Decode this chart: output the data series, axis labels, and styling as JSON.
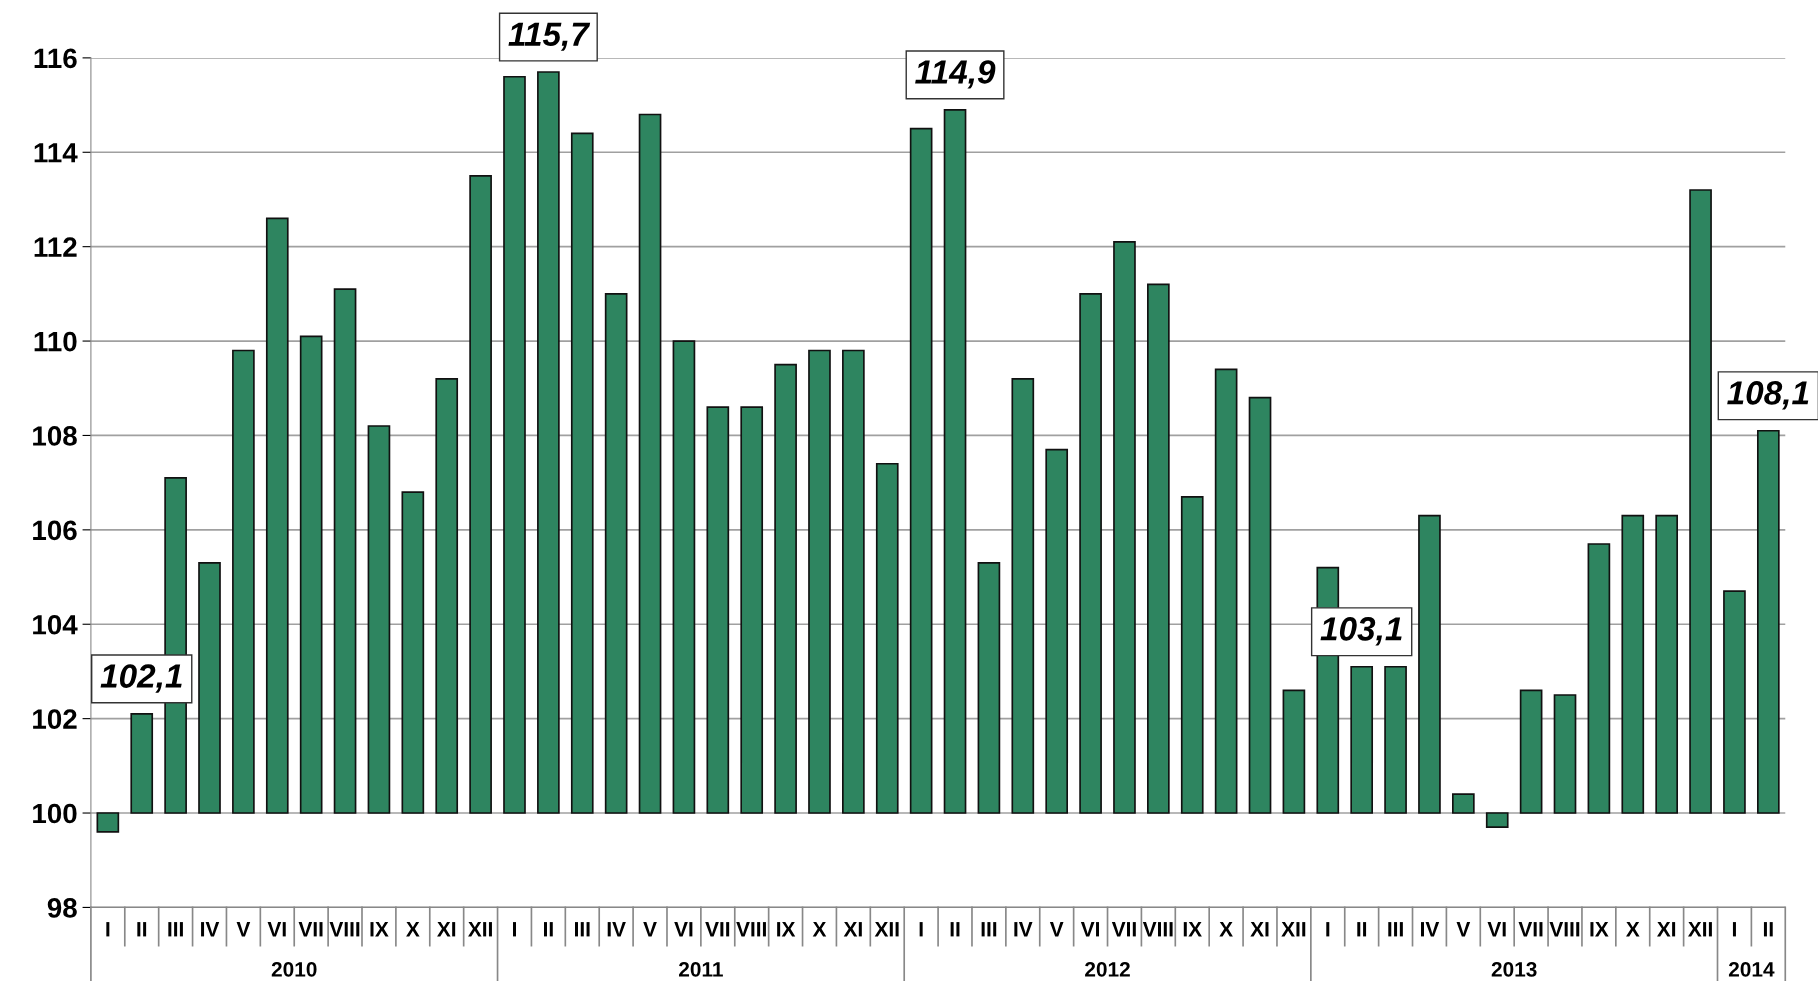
{
  "chart_data": {
    "type": "bar",
    "categories": [
      "I",
      "II",
      "III",
      "IV",
      "V",
      "VI",
      "VII",
      "VIII",
      "IX",
      "X",
      "XI",
      "XII",
      "I",
      "II",
      "III",
      "IV",
      "V",
      "VI",
      "VII",
      "VIII",
      "IX",
      "X",
      "XI",
      "XII",
      "I",
      "II",
      "III",
      "IV",
      "V",
      "VI",
      "VII",
      "VIII",
      "IX",
      "X",
      "XI",
      "XII",
      "I",
      "II",
      "III",
      "IV",
      "V",
      "VI",
      "VII",
      "VIII",
      "IX",
      "X",
      "XI",
      "XII",
      "I",
      "II"
    ],
    "base": [
      100,
      100,
      100,
      100,
      100,
      100,
      100,
      100,
      100,
      100,
      100,
      100,
      100,
      100,
      100,
      100,
      100,
      100,
      100,
      100,
      100,
      100,
      100,
      100,
      100,
      100,
      100,
      100,
      100,
      100,
      100,
      100,
      100,
      100,
      100,
      100,
      100,
      100,
      100,
      100,
      100,
      100,
      100,
      100,
      100,
      100,
      100,
      100,
      100,
      100
    ],
    "values": [
      -0.4,
      2.1,
      7.1,
      5.3,
      9.8,
      12.6,
      10.1,
      11.1,
      8.2,
      6.8,
      9.2,
      13.5,
      15.6,
      15.7,
      14.4,
      11.0,
      14.8,
      10.0,
      8.6,
      8.6,
      9.5,
      9.8,
      9.8,
      7.4,
      14.5,
      14.9,
      5.3,
      9.2,
      7.7,
      11.0,
      12.1,
      11.2,
      6.7,
      9.4,
      8.8,
      2.6,
      5.2,
      3.1,
      3.1,
      6.3,
      0.4,
      -0.3,
      2.6,
      2.5,
      5.7,
      6.3,
      6.3,
      13.2,
      4.7,
      8.1
    ],
    "value_labels": [
      null,
      "102,1",
      null,
      null,
      null,
      null,
      null,
      null,
      null,
      null,
      null,
      null,
      null,
      "115,7",
      null,
      null,
      null,
      null,
      null,
      null,
      null,
      null,
      null,
      null,
      null,
      "114,9",
      null,
      null,
      null,
      null,
      null,
      null,
      null,
      null,
      null,
      null,
      null,
      "103,1",
      null,
      null,
      null,
      null,
      null,
      null,
      null,
      null,
      null,
      null,
      null,
      "108,1"
    ],
    "color": "#2e8560",
    "ylim": [
      98,
      116
    ],
    "yticks": [
      98,
      100,
      102,
      104,
      106,
      108,
      110,
      112,
      114,
      116
    ],
    "grid": "y",
    "annotations": [
      "2010",
      "2011",
      "2012",
      "2013",
      "2014"
    ]
  }
}
